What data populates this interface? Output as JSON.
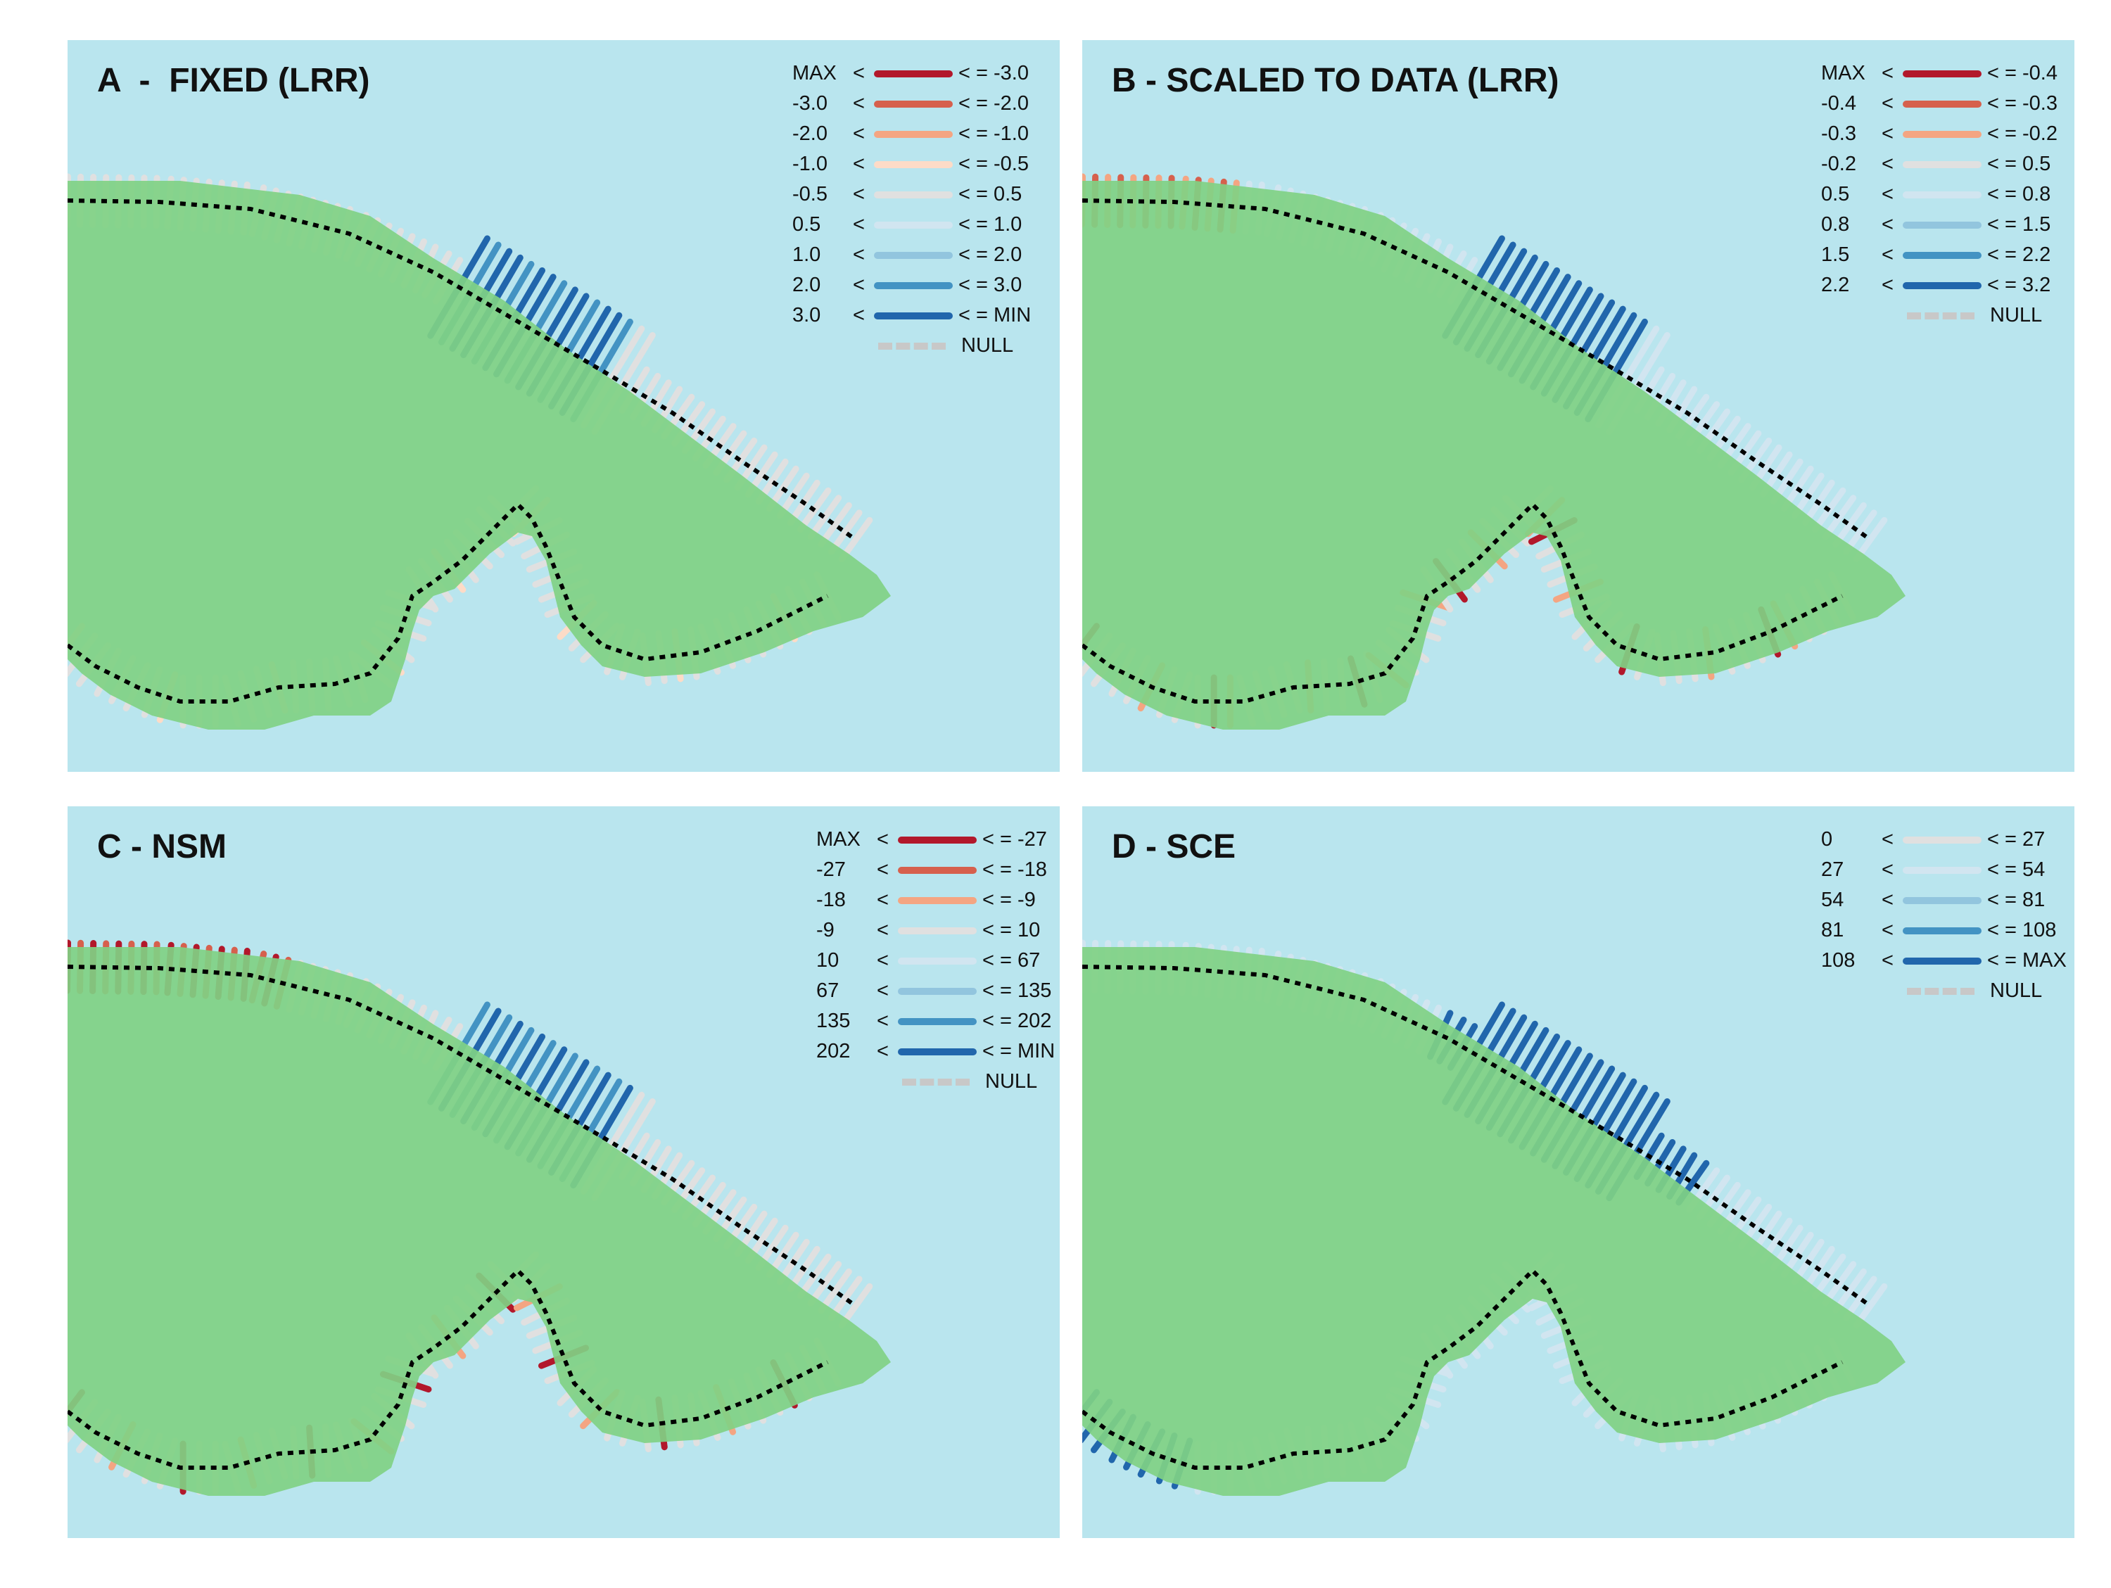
{
  "figure": {
    "panels": [
      {
        "id": "a",
        "title": "A  -  FIXED (LRR)",
        "legend": [
          {
            "low": "MAX",
            "lt": "<",
            "high": "< = -3.0",
            "color": "#b2182b"
          },
          {
            "low": "-3.0",
            "lt": "<",
            "high": "< = -2.0",
            "color": "#d6604d"
          },
          {
            "low": "-2.0",
            "lt": "<",
            "high": "< = -1.0",
            "color": "#f4a582"
          },
          {
            "low": "-1.0",
            "lt": "<",
            "high": "< = -0.5",
            "color": "#fddbc7"
          },
          {
            "low": "-0.5",
            "lt": "<",
            "high": "< = 0.5",
            "color": "#e0e0e0"
          },
          {
            "low": "0.5",
            "lt": "<",
            "high": "< = 1.0",
            "color": "#d1e5f0"
          },
          {
            "low": "1.0",
            "lt": "<",
            "high": "< = 2.0",
            "color": "#92c5de"
          },
          {
            "low": "2.0",
            "lt": "<",
            "high": "< = 3.0",
            "color": "#4393c3"
          },
          {
            "low": "3.0",
            "lt": "<",
            "high": "< = MIN",
            "color": "#2166ac"
          },
          {
            "low": "",
            "lt": "",
            "high": "NULL",
            "color": "null"
          }
        ]
      },
      {
        "id": "b",
        "title": "B - SCALED TO DATA (LRR)",
        "legend": [
          {
            "low": "MAX",
            "lt": "<",
            "high": "< = -0.4",
            "color": "#b2182b"
          },
          {
            "low": "-0.4",
            "lt": "<",
            "high": "< = -0.3",
            "color": "#d6604d"
          },
          {
            "low": "-0.3",
            "lt": "<",
            "high": "< = -0.2",
            "color": "#f4a582"
          },
          {
            "low": "-0.2",
            "lt": "<",
            "high": "< = 0.5",
            "color": "#e0e0e0"
          },
          {
            "low": "0.5",
            "lt": "<",
            "high": "< = 0.8",
            "color": "#d1e5f0"
          },
          {
            "low": "0.8",
            "lt": "<",
            "high": "< = 1.5",
            "color": "#92c5de"
          },
          {
            "low": "1.5",
            "lt": "<",
            "high": "< = 2.2",
            "color": "#4393c3"
          },
          {
            "low": "2.2",
            "lt": "<",
            "high": "< = 3.2",
            "color": "#2166ac"
          },
          {
            "low": "",
            "lt": "",
            "high": "NULL",
            "color": "null"
          }
        ]
      },
      {
        "id": "c",
        "title": "C - NSM",
        "legend": [
          {
            "low": "MAX",
            "lt": "<",
            "high": "< = -27",
            "color": "#b2182b"
          },
          {
            "low": "-27",
            "lt": "<",
            "high": "< = -18",
            "color": "#d6604d"
          },
          {
            "low": "-18",
            "lt": "<",
            "high": "< = -9",
            "color": "#f4a582"
          },
          {
            "low": "-9",
            "lt": "<",
            "high": "< = 10",
            "color": "#e0e0e0"
          },
          {
            "low": "10",
            "lt": "<",
            "high": "< = 67",
            "color": "#d1e5f0"
          },
          {
            "low": "67",
            "lt": "<",
            "high": "< = 135",
            "color": "#92c5de"
          },
          {
            "low": "135",
            "lt": "<",
            "high": "< = 202",
            "color": "#4393c3"
          },
          {
            "low": "202",
            "lt": "<",
            "high": "< = MIN",
            "color": "#2166ac"
          },
          {
            "low": "",
            "lt": "",
            "high": "NULL",
            "color": "null"
          }
        ]
      },
      {
        "id": "d",
        "title": "D - SCE",
        "legend": [
          {
            "low": "0",
            "lt": "<",
            "high": "< = 27",
            "color": "#e0e0e0"
          },
          {
            "low": "27",
            "lt": "<",
            "high": "< = 54",
            "color": "#d1e5f0"
          },
          {
            "low": "54",
            "lt": "<",
            "high": "< = 81",
            "color": "#92c5de"
          },
          {
            "low": "81",
            "lt": "<",
            "high": "< = 108",
            "color": "#4393c3"
          },
          {
            "low": "108",
            "lt": "<",
            "high": "< = MAX",
            "color": "#2166ac"
          },
          {
            "low": "",
            "lt": "",
            "high": "NULL",
            "color": "null"
          }
        ]
      }
    ],
    "colors": {
      "water": "#b9e5ee",
      "land": "#80d184",
      "baseline": "#000000"
    }
  }
}
